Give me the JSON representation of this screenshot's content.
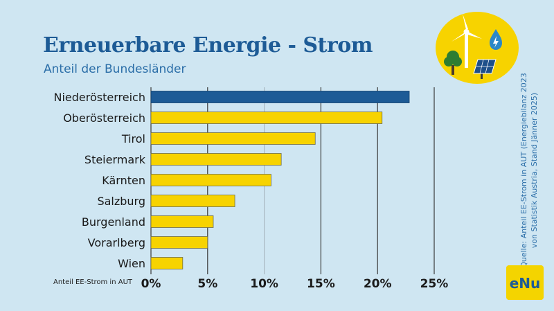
{
  "header": {
    "title": "Erneuerbare Energie - Strom",
    "subtitle": "Anteil der Bundesländer"
  },
  "source_note": "Quelle: Anteil EE-Strom in AUT (Energiebilanz 2023 von Statistik Austria, Stand Jänner 2025)",
  "logo_text": "eNu",
  "icons": [
    "wind-turbine-icon",
    "water-drop-lightning-icon",
    "tree-icon",
    "solar-panel-icon"
  ],
  "colors": {
    "highlight_bar": "#1d5b96",
    "bar": "#f7d300",
    "icon_circle": "#f7d300",
    "background": "#cfe6f2"
  },
  "chart_data": {
    "type": "bar",
    "orientation": "horizontal",
    "title": "Erneuerbare Energie - Strom",
    "subtitle": "Anteil der Bundesländer",
    "xlabel": "Anteil EE-Strom in AUT",
    "ylabel": "",
    "categories": [
      "Niederösterreich",
      "Oberösterreich",
      "Tirol",
      "Steiermark",
      "Kärnten",
      "Salzburg",
      "Burgenland",
      "Vorarlberg",
      "Wien"
    ],
    "values": [
      22.8,
      20.4,
      14.5,
      11.5,
      10.6,
      7.4,
      5.5,
      5.0,
      2.8
    ],
    "highlight": "Niederösterreich",
    "xlim": [
      0,
      25
    ],
    "ticks": [
      0,
      5,
      10,
      15,
      20,
      25
    ],
    "tick_labels": [
      "0%",
      "5%",
      "10%",
      "15%",
      "20%",
      "25%"
    ],
    "grid": true,
    "legend": "none"
  }
}
